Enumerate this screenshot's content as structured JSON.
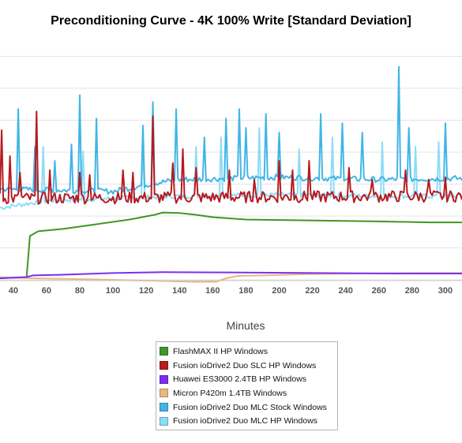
{
  "chart_data": {
    "type": "line",
    "title": "Preconditioning Curve - 4K 100% Write [Standard Deviation]",
    "xlabel": "Minutes",
    "ylabel": "",
    "x_ticks": [
      40,
      60,
      80,
      100,
      120,
      140,
      160,
      180,
      200,
      220,
      240,
      260,
      280,
      300
    ],
    "xlim": [
      32,
      310
    ],
    "ylim": [
      0,
      10
    ],
    "grid": "horizontal",
    "legend_position": "bottom",
    "series": [
      {
        "name": "FlashMAX II HP Windows",
        "color": "#3f9624",
        "points": [
          [
            32,
            0.0
          ],
          [
            48,
            0.05
          ],
          [
            50,
            1.8
          ],
          [
            55,
            2.0
          ],
          [
            70,
            2.1
          ],
          [
            90,
            2.3
          ],
          [
            110,
            2.5
          ],
          [
            125,
            2.7
          ],
          [
            130,
            2.8
          ],
          [
            140,
            2.78
          ],
          [
            150,
            2.7
          ],
          [
            160,
            2.6
          ],
          [
            170,
            2.55
          ],
          [
            180,
            2.5
          ],
          [
            200,
            2.48
          ],
          [
            230,
            2.45
          ],
          [
            260,
            2.42
          ],
          [
            290,
            2.38
          ],
          [
            310,
            2.38
          ]
        ]
      },
      {
        "name": "Fusion ioDrive2 Duo SLC HP Windows",
        "color": "#b51b21",
        "baseline": [
          [
            32,
            3.4
          ],
          [
            310,
            3.5
          ]
        ],
        "noise": 0.25,
        "spikes": [
          [
            33,
            6.3
          ],
          [
            38,
            5.2
          ],
          [
            44,
            4.5
          ],
          [
            54,
            7.1
          ],
          [
            62,
            4.6
          ],
          [
            80,
            4.5
          ],
          [
            86,
            4.4
          ],
          [
            106,
            4.6
          ],
          [
            112,
            4.5
          ],
          [
            124,
            6.9
          ],
          [
            136,
            4.9
          ],
          [
            142,
            5.5
          ],
          [
            150,
            4.7
          ],
          [
            170,
            4.6
          ],
          [
            185,
            4.2
          ],
          [
            200,
            5.0
          ],
          [
            208,
            4.6
          ],
          [
            218,
            5.0
          ],
          [
            242,
            4.7
          ],
          [
            256,
            4.2
          ],
          [
            276,
            4.6
          ],
          [
            290,
            4.2
          ],
          [
            300,
            4.3
          ]
        ]
      },
      {
        "name": "Huawei ES3000 2.4TB HP Windows",
        "color": "#7a2ff0",
        "points": [
          [
            32,
            0.0
          ],
          [
            48,
            0.05
          ],
          [
            52,
            0.12
          ],
          [
            70,
            0.15
          ],
          [
            100,
            0.22
          ],
          [
            130,
            0.26
          ],
          [
            170,
            0.25
          ],
          [
            220,
            0.22
          ],
          [
            270,
            0.2
          ],
          [
            310,
            0.2
          ]
        ]
      },
      {
        "name": "Micron P420m 1.4TB Windows",
        "color": "#e8b880",
        "points": [
          [
            32,
            0.05
          ],
          [
            50,
            0.0
          ],
          [
            90,
            -0.05
          ],
          [
            120,
            -0.1
          ],
          [
            150,
            -0.15
          ],
          [
            162,
            -0.15
          ],
          [
            168,
            0.0
          ],
          [
            175,
            0.1
          ],
          [
            190,
            0.12
          ],
          [
            220,
            0.18
          ],
          [
            250,
            0.2
          ],
          [
            280,
            0.22
          ],
          [
            310,
            0.22
          ]
        ]
      },
      {
        "name": "Fusion ioDrive2 Duo MLC Stock Windows",
        "color": "#41b5e6",
        "baseline": [
          [
            32,
            3.8
          ],
          [
            100,
            3.7
          ],
          [
            125,
            4.05
          ],
          [
            140,
            4.2
          ],
          [
            200,
            4.3
          ],
          [
            260,
            4.2
          ],
          [
            310,
            4.25
          ]
        ],
        "noise": 0.12,
        "spikes": [
          [
            43,
            7.2
          ],
          [
            53,
            5.6
          ],
          [
            65,
            5.0
          ],
          [
            75,
            5.7
          ],
          [
            80,
            7.8
          ],
          [
            90,
            6.8
          ],
          [
            118,
            6.5
          ],
          [
            124,
            7.5
          ],
          [
            138,
            7.2
          ],
          [
            155,
            6.0
          ],
          [
            168,
            6.8
          ],
          [
            176,
            7.2
          ],
          [
            180,
            6.4
          ],
          [
            192,
            7.0
          ],
          [
            200,
            6.2
          ],
          [
            225,
            7.0
          ],
          [
            238,
            6.6
          ],
          [
            250,
            6.2
          ],
          [
            272,
            9.0
          ],
          [
            278,
            6.4
          ],
          [
            300,
            6.6
          ]
        ]
      },
      {
        "name": "Fusion ioDrive2 Duo MLC HP Windows",
        "color": "#8ddcf7",
        "baseline": [
          [
            32,
            3.0
          ],
          [
            60,
            3.3
          ],
          [
            100,
            3.4
          ],
          [
            140,
            3.5
          ],
          [
            200,
            3.55
          ],
          [
            260,
            3.5
          ],
          [
            310,
            3.5
          ]
        ],
        "noise": 0.1,
        "spikes": [
          [
            58,
            5.6
          ],
          [
            82,
            5.4
          ],
          [
            118,
            5.7
          ],
          [
            150,
            5.6
          ],
          [
            165,
            6.0
          ],
          [
            188,
            6.4
          ],
          [
            212,
            5.5
          ],
          [
            232,
            6.0
          ],
          [
            262,
            5.8
          ],
          [
            282,
            5.6
          ],
          [
            296,
            5.8
          ]
        ]
      }
    ]
  }
}
